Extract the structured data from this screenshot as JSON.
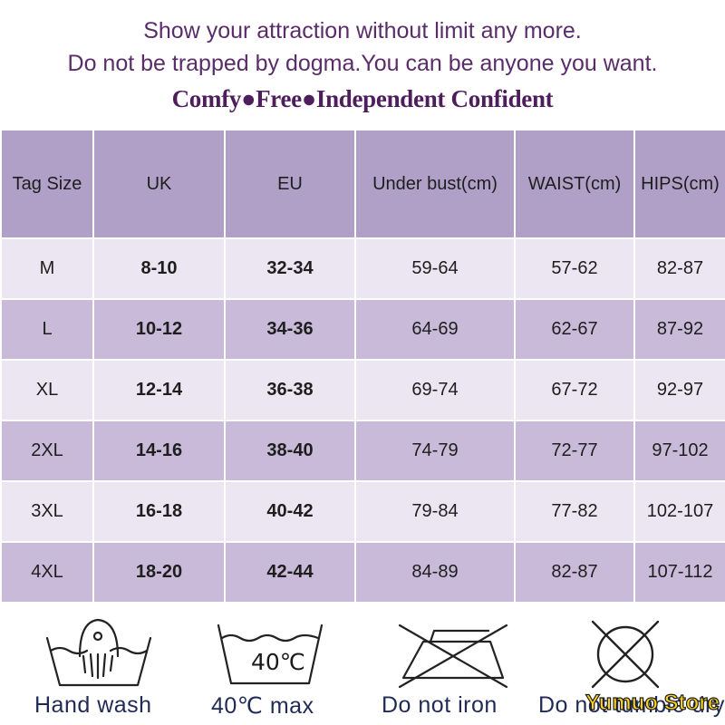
{
  "header": {
    "line1": "Show your attraction without limit any more.",
    "line2": "Do not be trapped by dogma.You can be anyone you want.",
    "motto": "Comfy●Free●Independent Confident"
  },
  "table": {
    "columns": [
      "Tag Size",
      "UK",
      "EU",
      "Under bust(cm)",
      "WAIST(cm)",
      "HIPS(cm)"
    ],
    "rows": [
      [
        "M",
        "8-10",
        "32-34",
        "59-64",
        "57-62",
        "82-87"
      ],
      [
        "L",
        "10-12",
        "34-36",
        "64-69",
        "62-67",
        "87-92"
      ],
      [
        "XL",
        "12-14",
        "36-38",
        "69-74",
        "67-72",
        "92-97"
      ],
      [
        "2XL",
        "14-16",
        "38-40",
        "74-79",
        "72-77",
        "97-102"
      ],
      [
        "3XL",
        "16-18",
        "40-42",
        "79-84",
        "77-82",
        "102-107"
      ],
      [
        "4XL",
        "18-20",
        "42-44",
        "84-89",
        "82-87",
        "107-112"
      ]
    ]
  },
  "care": {
    "hand_wash": {
      "label": "Hand wash",
      "icon": "hand-wash-icon"
    },
    "max_temp": {
      "label": "40℃ max",
      "badge": "40℃",
      "icon": "wash-40-icon"
    },
    "no_iron": {
      "label": "Do not iron",
      "icon": "no-iron-icon"
    },
    "no_tumble": {
      "label": "Do not tumble dry",
      "icon": "no-tumble-dry-icon"
    }
  },
  "watermark": "Yumuo Store",
  "colors": {
    "header_text": "#5a2d6a",
    "table_header": "#b0a0c8",
    "row_light": "#ece6f2",
    "row_dark": "#c8bad8",
    "care_label": "#1f2a55",
    "watermark": "#ffd21f"
  }
}
